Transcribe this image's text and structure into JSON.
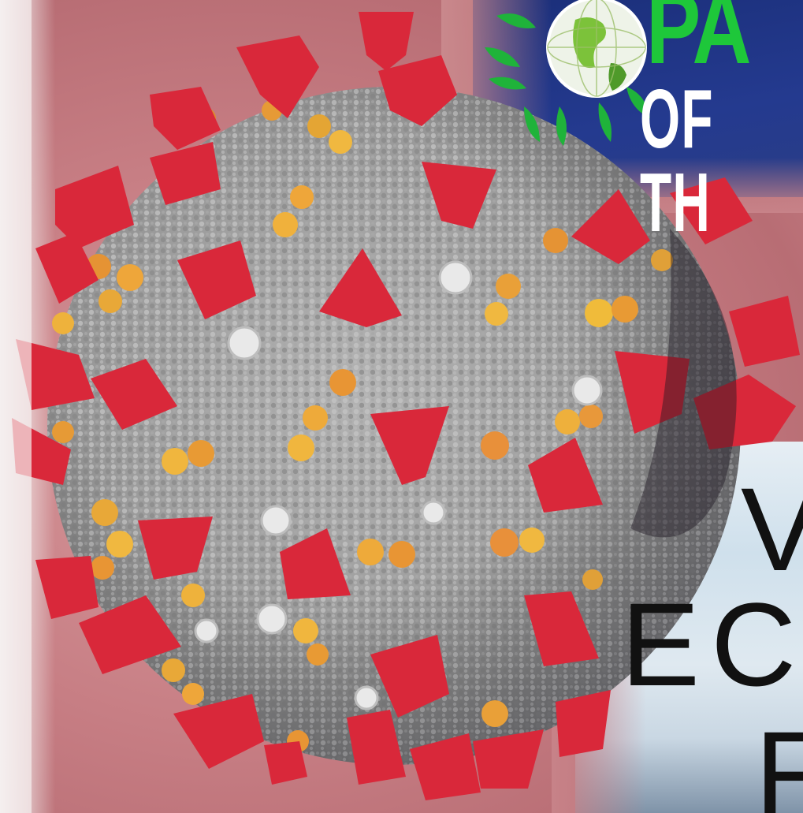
{
  "logo": {
    "brand_text": "PA",
    "brand_sub": "OF TH",
    "colors": {
      "banner": "#243a8f",
      "leaf": "#1ec73a",
      "text_sub": "#ffffff"
    },
    "icon": "globe-icon"
  },
  "headline": {
    "line1": "V",
    "line2": "ECO",
    "line3": "F",
    "color": "#111111"
  },
  "illustration": {
    "subject": "coronavirus-particle",
    "colors": {
      "body": "#9a9a9a",
      "spike": "#d92b3a",
      "protein": "#e6a53a",
      "background": "#c77e84"
    }
  }
}
